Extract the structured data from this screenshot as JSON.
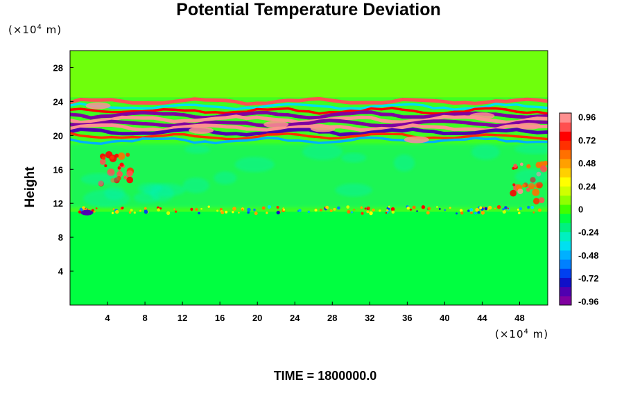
{
  "chart_data": {
    "type": "heatmap",
    "title": "Potential Temperature Deviation",
    "ylabel": "Height",
    "x_unit": {
      "prefix": "(×10",
      "exp": "4",
      "suffix": " m)"
    },
    "y_unit": {
      "prefix": "(×10",
      "exp": "4",
      "suffix": " m)"
    },
    "xlim": [
      0,
      51
    ],
    "ylim": [
      0,
      30
    ],
    "x_ticks": [
      "4",
      "8",
      "12",
      "16",
      "20",
      "24",
      "28",
      "32",
      "36",
      "40",
      "44",
      "48"
    ],
    "y_ticks": [
      "4",
      "8",
      "12",
      "16",
      "20",
      "24",
      "28"
    ],
    "colorbar": {
      "labels": [
        "0.96",
        "0.72",
        "0.48",
        "0.24",
        "0",
        "-0.24",
        "-0.48",
        "-0.72",
        "-0.96"
      ],
      "range": [
        -1.0,
        1.0
      ],
      "colors": [
        "#8000a0",
        "#5000b0",
        "#1010c8",
        "#0040f0",
        "#0080ff",
        "#00b0ff",
        "#00e0f0",
        "#00f0c0",
        "#00f080",
        "#00ff40",
        "#40ff00",
        "#90ff00",
        "#d0ff00",
        "#ffff00",
        "#ffd000",
        "#ffa000",
        "#ff7000",
        "#ff3000",
        "#ff0000",
        "#ff5050",
        "#ff9090"
      ]
    },
    "background_value": -0.05,
    "features": [
      {
        "name": "upper stratified band",
        "y_range": [
          19,
          24.5
        ],
        "value_range": [
          -1.0,
          1.0
        ]
      },
      {
        "name": "tropopause line",
        "y": 11.2,
        "value": 0.5
      },
      {
        "name": "left plume",
        "x": 5,
        "y": 16,
        "value": 0.9
      },
      {
        "name": "right plume",
        "x": 49,
        "y": 14.5,
        "value": 0.95
      }
    ]
  },
  "time_label": "TIME = 1800000.0"
}
